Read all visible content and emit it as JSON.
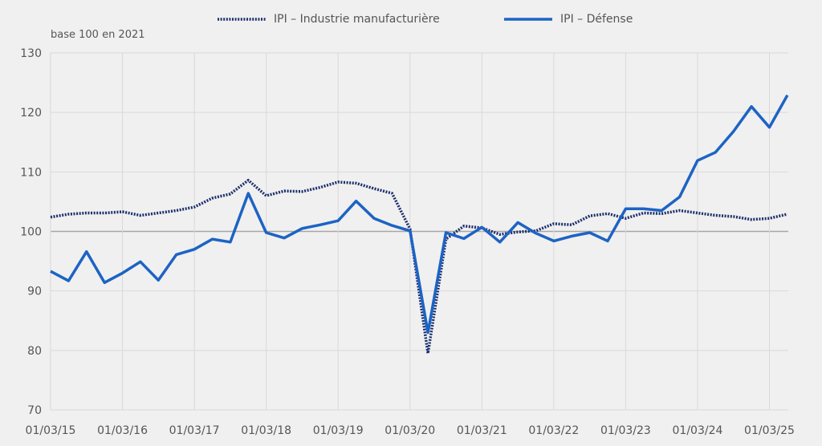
{
  "legend": {
    "series_1": "IPI – Industrie manufacturière",
    "series_2": "IPI – Défense"
  },
  "unit_label": "base 100 en 2021",
  "colors": {
    "manufacturing": "#1b2f6b",
    "defense": "#1d63c4",
    "grid": "#d9d9d9",
    "baseline": "#a6a6a6",
    "background": "#f0f0f0",
    "text": "#555555"
  },
  "chart_data": {
    "type": "line",
    "title": "",
    "xlabel": "",
    "ylabel": "base 100 en 2021",
    "ylim": [
      70,
      130
    ],
    "yticks": [
      70,
      80,
      90,
      100,
      110,
      120,
      130
    ],
    "xtick_labels": [
      "01/03/15",
      "01/03/16",
      "01/03/17",
      "01/03/18",
      "01/03/19",
      "01/03/20",
      "01/03/21",
      "01/03/22",
      "01/03/23",
      "01/03/24",
      "01/03/25"
    ],
    "grid": true,
    "legend_position": "top",
    "x": [
      "2015-Q1",
      "2015-Q2",
      "2015-Q3",
      "2015-Q4",
      "2016-Q1",
      "2016-Q2",
      "2016-Q3",
      "2016-Q4",
      "2017-Q1",
      "2017-Q2",
      "2017-Q3",
      "2017-Q4",
      "2018-Q1",
      "2018-Q2",
      "2018-Q3",
      "2018-Q4",
      "2019-Q1",
      "2019-Q2",
      "2019-Q3",
      "2019-Q4",
      "2020-Q1",
      "2020-Q2",
      "2020-Q3",
      "2020-Q4",
      "2021-Q1",
      "2021-Q2",
      "2021-Q3",
      "2021-Q4",
      "2022-Q1",
      "2022-Q2",
      "2022-Q3",
      "2022-Q4",
      "2023-Q1",
      "2023-Q2",
      "2023-Q3",
      "2023-Q4",
      "2024-Q1",
      "2024-Q2",
      "2024-Q3",
      "2024-Q4",
      "2025-Q1",
      "2025-Q2"
    ],
    "series": [
      {
        "name": "IPI – Industrie manufacturière",
        "style": "dotted",
        "values": [
          102.4,
          102.9,
          103.1,
          103.1,
          103.3,
          102.7,
          103.1,
          103.5,
          104.1,
          105.6,
          106.3,
          108.6,
          106.0,
          106.8,
          106.7,
          107.4,
          108.3,
          108.1,
          107.2,
          106.4,
          100.4,
          79.5,
          98.7,
          100.9,
          100.6,
          99.5,
          99.9,
          100.1,
          101.3,
          101.1,
          102.6,
          103.0,
          102.2,
          103.1,
          103.0,
          103.5,
          103.1,
          102.7,
          102.5,
          102.0,
          102.2,
          102.9
        ]
      },
      {
        "name": "IPI – Défense",
        "style": "solid",
        "values": [
          93.3,
          91.7,
          96.6,
          91.4,
          93.0,
          94.9,
          91.8,
          96.1,
          97.0,
          98.7,
          98.2,
          106.4,
          99.8,
          98.9,
          100.5,
          101.1,
          101.8,
          105.1,
          102.2,
          101.0,
          100.1,
          83.0,
          99.8,
          98.8,
          100.7,
          98.2,
          101.5,
          99.7,
          98.4,
          99.2,
          99.8,
          98.4,
          103.8,
          103.8,
          103.5,
          105.8,
          111.9,
          113.3,
          116.8,
          121.0,
          117.5,
          122.9
        ]
      }
    ]
  }
}
